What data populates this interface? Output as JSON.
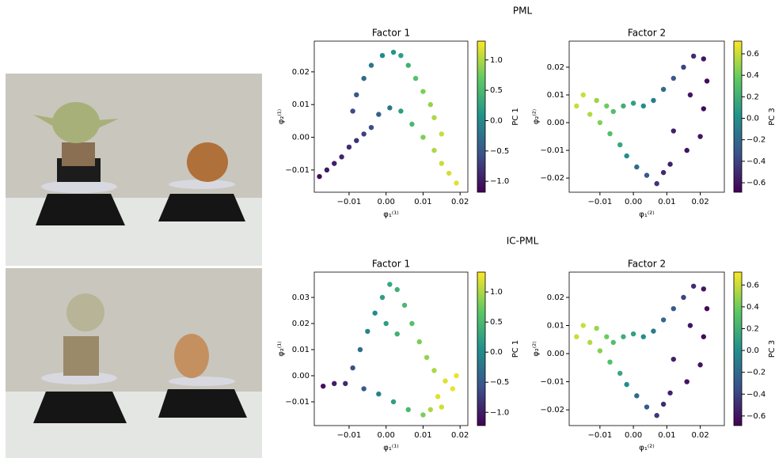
{
  "row_titles": [
    "PML",
    "IC-PML"
  ],
  "chart_data": [
    {
      "type": "scatter",
      "title": "Factor 1",
      "xlabel": "φ₁⁽¹⁾",
      "ylabel": "φ₂⁽¹⁾",
      "colormap": "viridis",
      "xlim": [
        -0.0194,
        0.0221
      ],
      "ylim": [
        -0.0168,
        0.0294
      ],
      "xticks": [
        {
          "value": -0.01,
          "label": "−0.01"
        },
        {
          "value": 0,
          "label": "0.00"
        },
        {
          "value": 0.01,
          "label": "0.01"
        },
        {
          "value": 0.02,
          "label": "0.02"
        }
      ],
      "yticks": [
        {
          "value": -0.01,
          "label": "−0.01"
        },
        {
          "value": 0,
          "label": "0.00"
        },
        {
          "value": 0.01,
          "label": "0.01"
        },
        {
          "value": 0.02,
          "label": "0.02"
        }
      ],
      "colorbar": {
        "label": "PC 1",
        "lim": [
          -1.18,
          1.31
        ],
        "ticks": [
          {
            "value": -1,
            "label": "−1.0"
          },
          {
            "value": -0.5,
            "label": "−0.5"
          },
          {
            "value": 0,
            "label": "0.0"
          },
          {
            "value": 0.5,
            "label": "0.5"
          },
          {
            "value": 1,
            "label": "1.0"
          }
        ]
      },
      "x": [
        -0.018,
        -0.016,
        -0.014,
        -0.012,
        -0.01,
        -0.008,
        -0.006,
        -0.009,
        -0.008,
        -0.006,
        -0.004,
        -0.001,
        0.002,
        0.004,
        0.006,
        0.008,
        0.01,
        0.012,
        -0.004,
        -0.002,
        0.001,
        0.004,
        0.007,
        0.01,
        0.013,
        0.015,
        0.017,
        0.019,
        0.013,
        0.015
      ],
      "y": [
        -0.012,
        -0.01,
        -0.008,
        -0.006,
        -0.003,
        -0.001,
        0.001,
        0.008,
        0.013,
        0.018,
        0.022,
        0.025,
        0.026,
        0.025,
        0.022,
        0.018,
        0.014,
        0.01,
        0.003,
        0.007,
        0.009,
        0.008,
        0.004,
        0.0,
        -0.004,
        -0.008,
        -0.011,
        -0.014,
        0.006,
        0.001
      ],
      "c": [
        -1.1,
        -1.0,
        -0.95,
        -0.9,
        -0.85,
        -0.8,
        -0.7,
        -0.6,
        -0.5,
        -0.3,
        -0.2,
        0.0,
        0.1,
        0.2,
        0.4,
        0.6,
        0.8,
        0.9,
        -0.6,
        -0.4,
        -0.2,
        0.2,
        0.5,
        0.8,
        1.0,
        1.1,
        1.15,
        1.2,
        1.0,
        1.1
      ]
    },
    {
      "type": "scatter",
      "title": "Factor 2",
      "xlabel": "φ₁⁽²⁾",
      "ylabel": "φ₂⁽²⁾",
      "colormap": "viridis",
      "xlim": [
        -0.0192,
        0.0272
      ],
      "ylim": [
        -0.0251,
        0.0294
      ],
      "xticks": [
        {
          "value": -0.01,
          "label": "−0.01"
        },
        {
          "value": 0,
          "label": "0.00"
        },
        {
          "value": 0.01,
          "label": "0.01"
        },
        {
          "value": 0.02,
          "label": "0.02"
        }
      ],
      "yticks": [
        {
          "value": -0.02,
          "label": "−0.02"
        },
        {
          "value": -0.01,
          "label": "−0.01"
        },
        {
          "value": 0,
          "label": "0.00"
        },
        {
          "value": 0.01,
          "label": "0.01"
        },
        {
          "value": 0.02,
          "label": "0.02"
        }
      ],
      "colorbar": {
        "label": "PC 3",
        "lim": [
          -0.688,
          0.718
        ],
        "ticks": [
          {
            "value": -0.6,
            "label": "−0.6"
          },
          {
            "value": -0.4,
            "label": "−0.4"
          },
          {
            "value": -0.2,
            "label": "−0.2"
          },
          {
            "value": 0,
            "label": "0.0"
          },
          0.2,
          0.4,
          0.6
        ]
      },
      "x": [
        -0.017,
        -0.015,
        -0.013,
        -0.011,
        -0.01,
        -0.008,
        -0.006,
        -0.007,
        -0.004,
        -0.002,
        0.001,
        0.004,
        0.007,
        -0.003,
        0.0,
        0.003,
        0.006,
        0.009,
        0.012,
        0.015,
        0.018,
        0.021,
        0.022,
        0.021,
        0.02,
        0.016,
        0.012,
        0.011,
        0.009,
        0.017
      ],
      "y": [
        0.006,
        0.01,
        0.003,
        0.008,
        0.0,
        0.006,
        0.004,
        -0.004,
        -0.008,
        -0.012,
        -0.016,
        -0.019,
        -0.022,
        0.006,
        0.007,
        0.006,
        0.008,
        0.012,
        0.016,
        0.02,
        0.024,
        0.023,
        0.015,
        0.005,
        -0.005,
        -0.01,
        -0.003,
        -0.015,
        -0.018,
        0.01
      ],
      "c": [
        0.6,
        0.6,
        0.55,
        0.5,
        0.45,
        0.4,
        0.3,
        0.3,
        0.15,
        0.0,
        -0.2,
        -0.3,
        -0.45,
        0.2,
        0.1,
        0.0,
        -0.1,
        -0.2,
        -0.3,
        -0.4,
        -0.5,
        -0.6,
        -0.65,
        -0.65,
        -0.6,
        -0.6,
        -0.55,
        -0.55,
        -0.5,
        -0.6
      ]
    },
    {
      "type": "scatter",
      "title": "Factor 1",
      "xlabel": "φ₁⁽¹⁾",
      "ylabel": "φ₂⁽¹⁾",
      "colormap": "viridis",
      "xlim": [
        -0.0194,
        0.0221
      ],
      "ylim": [
        -0.0191,
        0.0397
      ],
      "xticks": [
        {
          "value": -0.01,
          "label": "−0.01"
        },
        {
          "value": 0,
          "label": "0.00"
        },
        {
          "value": 0.01,
          "label": "0.01"
        },
        {
          "value": 0.02,
          "label": "0.02"
        }
      ],
      "yticks": [
        {
          "value": -0.01,
          "label": "−0.01"
        },
        {
          "value": 0,
          "label": "0.00"
        },
        {
          "value": 0.01,
          "label": "0.01"
        },
        {
          "value": 0.02,
          "label": "0.02"
        },
        {
          "value": 0.03,
          "label": "0.03"
        }
      ],
      "colorbar": {
        "label": "PC 1",
        "lim": [
          -1.22,
          1.33
        ],
        "ticks": [
          {
            "value": -1,
            "label": "−1.0"
          },
          {
            "value": -0.5,
            "label": "−0.5"
          },
          {
            "value": 0,
            "label": "0.0"
          },
          {
            "value": 0.5,
            "label": "0.5"
          },
          {
            "value": 1,
            "label": "1.0"
          }
        ]
      },
      "x": [
        -0.017,
        -0.014,
        -0.011,
        -0.009,
        -0.007,
        -0.005,
        -0.003,
        -0.001,
        0.001,
        0.003,
        0.005,
        0.007,
        0.009,
        0.011,
        0.013,
        0.016,
        0.018,
        0.014,
        0.012,
        0.01,
        0.006,
        0.002,
        -0.002,
        -0.006,
        0.0,
        0.003,
        0.015,
        0.019
      ],
      "y": [
        -0.004,
        -0.003,
        -0.003,
        0.003,
        0.01,
        0.017,
        0.024,
        0.03,
        0.035,
        0.033,
        0.027,
        0.02,
        0.013,
        0.007,
        0.002,
        -0.002,
        -0.005,
        -0.008,
        -0.013,
        -0.015,
        -0.013,
        -0.01,
        -0.007,
        -0.005,
        0.02,
        0.016,
        -0.012,
        0.0
      ],
      "c": [
        -1.1,
        -1.0,
        -0.9,
        -0.6,
        -0.3,
        -0.1,
        0.0,
        0.2,
        0.3,
        0.4,
        0.5,
        0.6,
        0.8,
        0.9,
        1.0,
        1.2,
        1.25,
        1.2,
        1.0,
        0.8,
        0.5,
        0.2,
        -0.1,
        -0.5,
        0.2,
        0.4,
        1.15,
        1.25
      ]
    },
    {
      "type": "scatter",
      "title": "Factor 2",
      "xlabel": "φ₁⁽²⁾",
      "ylabel": "φ₂⁽²⁾",
      "colormap": "viridis",
      "xlim": [
        -0.0192,
        0.0272
      ],
      "ylim": [
        -0.0256,
        0.029
      ],
      "xticks": [
        {
          "value": -0.01,
          "label": "−0.01"
        },
        {
          "value": 0,
          "label": "0.00"
        },
        {
          "value": 0.01,
          "label": "0.01"
        },
        {
          "value": 0.02,
          "label": "0.02"
        }
      ],
      "yticks": [
        {
          "value": -0.02,
          "label": "−0.02"
        },
        {
          "value": -0.01,
          "label": "−0.01"
        },
        {
          "value": 0,
          "label": "0.00"
        },
        {
          "value": 0.01,
          "label": "0.01"
        },
        {
          "value": 0.02,
          "label": "0.02"
        }
      ],
      "colorbar": {
        "label": "PC 3",
        "lim": [
          -0.688,
          0.718
        ],
        "ticks": [
          {
            "value": -0.6,
            "label": "−0.6"
          },
          {
            "value": -0.4,
            "label": "−0.4"
          },
          {
            "value": -0.2,
            "label": "−0.2"
          },
          {
            "value": 0,
            "label": "0.0"
          },
          0.2,
          0.4,
          0.6
        ]
      },
      "x": [
        -0.017,
        -0.015,
        -0.013,
        -0.011,
        -0.01,
        -0.008,
        -0.006,
        -0.007,
        -0.004,
        -0.002,
        0.001,
        0.004,
        0.007,
        -0.003,
        0.0,
        0.003,
        0.006,
        0.009,
        0.012,
        0.015,
        0.018,
        0.021,
        0.022,
        0.021,
        0.02,
        0.016,
        0.012,
        0.011,
        0.009,
        0.017
      ],
      "y": [
        0.006,
        0.01,
        0.004,
        0.009,
        0.001,
        0.006,
        0.004,
        -0.003,
        -0.007,
        -0.011,
        -0.015,
        -0.019,
        -0.022,
        0.006,
        0.007,
        0.006,
        0.008,
        0.012,
        0.016,
        0.02,
        0.024,
        0.023,
        0.016,
        0.006,
        -0.004,
        -0.01,
        -0.002,
        -0.014,
        -0.018,
        0.01
      ],
      "c": [
        0.6,
        0.6,
        0.55,
        0.5,
        0.45,
        0.4,
        0.3,
        0.3,
        0.15,
        0.0,
        -0.2,
        -0.3,
        -0.45,
        0.2,
        0.1,
        0.0,
        -0.1,
        -0.2,
        -0.3,
        -0.4,
        -0.5,
        -0.6,
        -0.65,
        -0.65,
        -0.6,
        -0.6,
        -0.55,
        -0.55,
        -0.5,
        -0.6
      ]
    }
  ]
}
